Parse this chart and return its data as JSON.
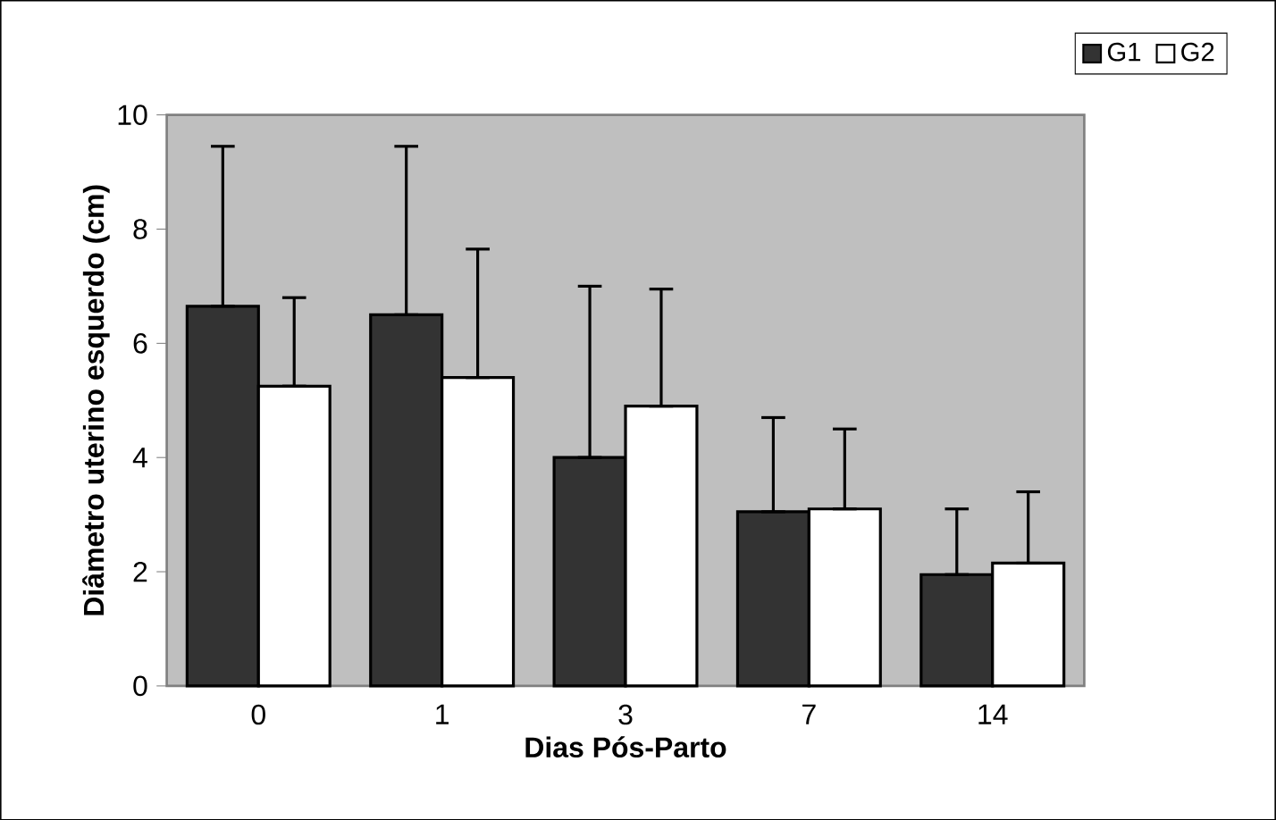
{
  "chart_data": {
    "type": "bar",
    "xlabel": "Dias Pós-Parto",
    "ylabel": "Diâmetro uterino esquerdo (cm)",
    "categories": [
      "0",
      "1",
      "3",
      "7",
      "14"
    ],
    "series": [
      {
        "name": "G1",
        "color": "#333333",
        "values": [
          6.65,
          6.5,
          4.0,
          3.05,
          1.95
        ],
        "errors": [
          [
            6.65,
            9.45
          ],
          [
            6.5,
            9.45
          ],
          [
            4.0,
            7.0
          ],
          [
            3.05,
            4.7
          ],
          [
            1.95,
            3.1
          ]
        ]
      },
      {
        "name": "G2",
        "color": "#ffffff",
        "values": [
          5.25,
          5.4,
          4.9,
          3.1,
          2.15
        ],
        "errors": [
          [
            5.25,
            6.8
          ],
          [
            5.4,
            7.65
          ],
          [
            4.9,
            6.95
          ],
          [
            3.1,
            4.5
          ],
          [
            2.15,
            3.4
          ]
        ]
      }
    ],
    "ylim": [
      0,
      10
    ],
    "yticks": [
      0,
      2,
      4,
      6,
      8,
      10
    ],
    "legend": "top right"
  }
}
